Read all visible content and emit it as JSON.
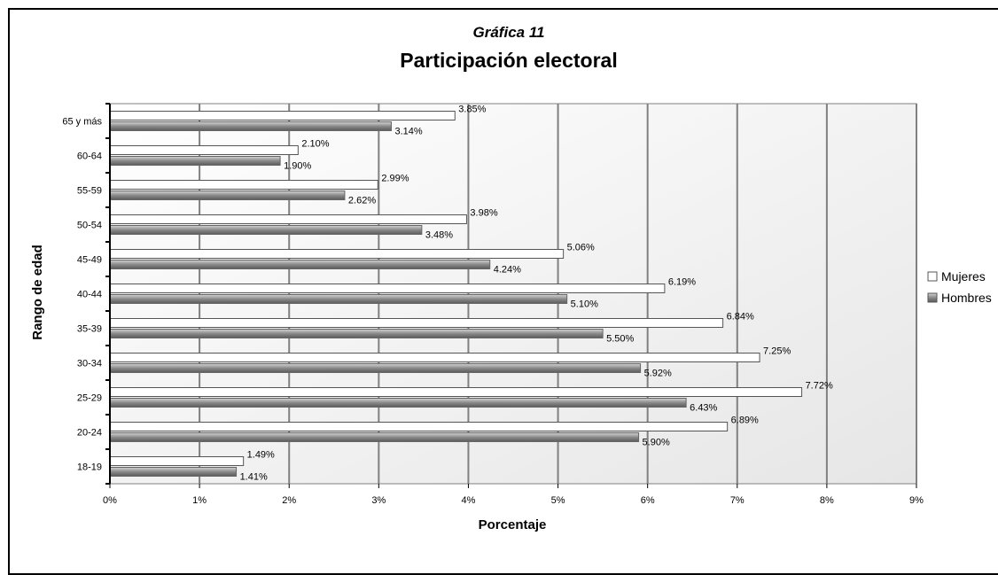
{
  "chart_data": {
    "type": "bar",
    "orientation": "horizontal",
    "subtitle": "Gráfica 11",
    "title": "Participación electoral",
    "xlabel": "Porcentaje",
    "ylabel": "Rango de edad",
    "xlim": [
      0,
      9
    ],
    "x_ticks": [
      "0%",
      "1%",
      "2%",
      "3%",
      "4%",
      "5%",
      "6%",
      "7%",
      "8%",
      "9%"
    ],
    "categories": [
      "18-19",
      "20-24",
      "25-29",
      "30-34",
      "35-39",
      "40-44",
      "45-49",
      "50-54",
      "55-59",
      "60-64",
      "65 y más"
    ],
    "series": [
      {
        "name": "Mujeres",
        "color": "#ffffff",
        "values": [
          1.49,
          6.89,
          7.72,
          7.25,
          6.84,
          6.19,
          5.06,
          3.98,
          2.99,
          2.1,
          3.85
        ],
        "labels": [
          "1.49%",
          "6.89%",
          "7.72%",
          "7.25%",
          "6.84%",
          "6.19%",
          "5.06%",
          "3.98%",
          "2.99%",
          "2.10%",
          "3.85%"
        ]
      },
      {
        "name": "Hombres",
        "color": "#8c8c8c",
        "values": [
          1.41,
          5.9,
          6.43,
          5.92,
          5.5,
          5.1,
          4.24,
          3.48,
          2.62,
          1.9,
          3.14
        ],
        "labels": [
          "1.41%",
          "5.90%",
          "6.43%",
          "5.92%",
          "5.50%",
          "5.10%",
          "4.24%",
          "3.48%",
          "2.62%",
          "1.90%",
          "3.14%"
        ]
      }
    ],
    "grid": true,
    "legend_position": "right"
  }
}
